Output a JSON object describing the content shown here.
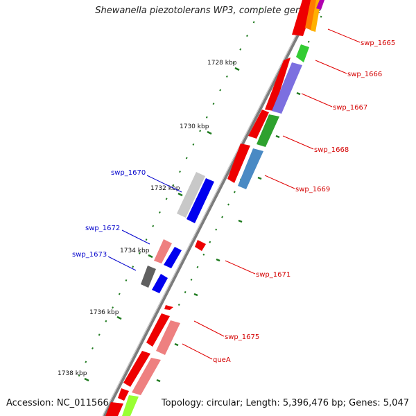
{
  "title": "Shewanella piezotolerans WP3, complete genome",
  "footer": {
    "accession": "Accession: NC_011566",
    "summary": "Topology: circular; Length: 5,396,476 bp; Genes: 5,047"
  },
  "colors": {
    "backbone": "#8a8a8a",
    "tick": "#1e7a1e",
    "forward_label": "#d40000",
    "reverse_label": "#0000cc"
  },
  "ruler": [
    {
      "label": "1728 kbp"
    },
    {
      "label": "1730 kbp"
    },
    {
      "label": "1732 kbp"
    },
    {
      "label": "1734 kbp"
    },
    {
      "label": "1736 kbp"
    },
    {
      "label": "1738 kbp"
    }
  ],
  "gene_labels": [
    {
      "name": "swp_1665",
      "strand": "forward"
    },
    {
      "name": "swp_1666",
      "strand": "forward"
    },
    {
      "name": "swp_1667",
      "strand": "forward"
    },
    {
      "name": "swp_1668",
      "strand": "forward"
    },
    {
      "name": "swp_1669",
      "strand": "forward"
    },
    {
      "name": "swp_1670",
      "strand": "reverse"
    },
    {
      "name": "swp_1671",
      "strand": "forward"
    },
    {
      "name": "swp_1672",
      "strand": "reverse"
    },
    {
      "name": "swp_1673",
      "strand": "reverse"
    },
    {
      "name": "swp_1675",
      "strand": "forward"
    },
    {
      "name": "queA",
      "strand": "forward"
    }
  ]
}
